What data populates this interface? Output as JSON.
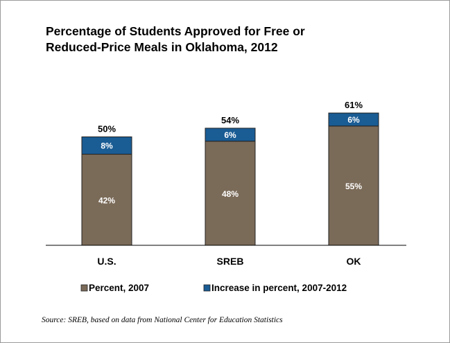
{
  "chart_data": {
    "type": "bar",
    "stacked": true,
    "title_lines": [
      "Percentage of Students Approved for Free or",
      "Reduced-Price Meals in Oklahoma, 2012"
    ],
    "categories": [
      "U.S.",
      "SREB",
      "OK"
    ],
    "series": [
      {
        "name": "Percent, 2007",
        "values": [
          42,
          48,
          55
        ],
        "labels": [
          "42%",
          "48%",
          "55%"
        ],
        "color": "#7a6a58"
      },
      {
        "name": "Increase in percent, 2007-2012",
        "values": [
          8,
          6,
          6
        ],
        "labels": [
          "8%",
          "6%",
          "6%"
        ],
        "color": "#1a5c94"
      }
    ],
    "totals": [
      50,
      54,
      61
    ],
    "total_labels": [
      "50%",
      "54%",
      "61%"
    ],
    "ylim": [
      0,
      70
    ],
    "grid": false,
    "legend_position": "bottom",
    "source": "Source: SREB, based on data from National Center for Education Statistics"
  }
}
